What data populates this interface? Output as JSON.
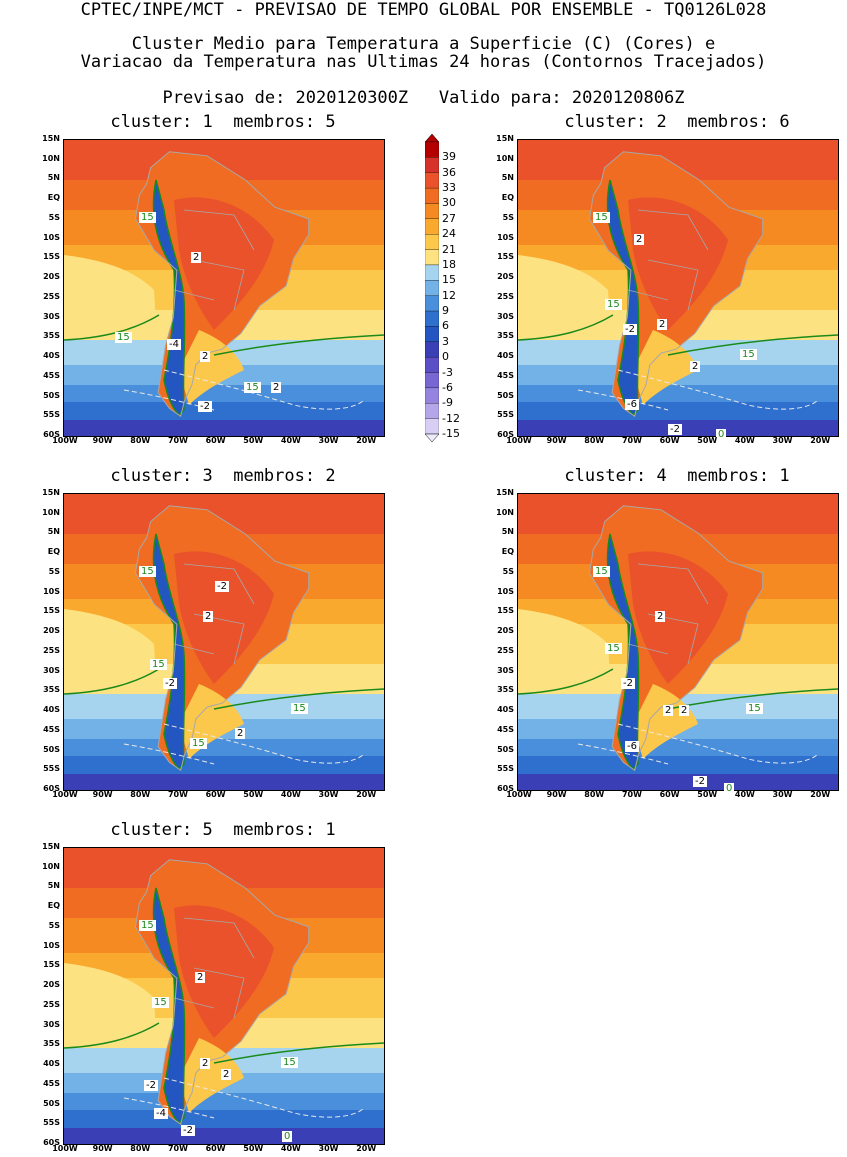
{
  "header": {
    "line1": "CPTEC/INPE/MCT - PREVISAO DE TEMPO GLOBAL POR ENSEMBLE - TQ0126L028",
    "line2": "Cluster Medio para Temperatura a Superficie (C) (Cores) e",
    "line3": "Variacao da Temperatura nas Ultimas 24 horas (Contornos Tracejados)",
    "line4": "Previsao de: 2020120300Z   Valido para: 2020120806Z"
  },
  "panels": [
    {
      "title": "cluster: 1  membros: 5",
      "labels": [
        {
          "t": "15",
          "c": "g"
        },
        {
          "t": "15",
          "c": "g"
        },
        {
          "t": "15",
          "c": "g"
        },
        {
          "t": "2",
          "c": "k"
        },
        {
          "t": "-4",
          "c": "k"
        },
        {
          "t": "2",
          "c": "k"
        },
        {
          "t": "2",
          "c": "k"
        },
        {
          "t": "-2",
          "c": "k"
        }
      ]
    },
    {
      "title": "cluster: 2  membros: 6",
      "labels": [
        {
          "t": "15",
          "c": "g"
        },
        {
          "t": "15",
          "c": "g"
        },
        {
          "t": "15",
          "c": "g"
        },
        {
          "t": "2",
          "c": "k"
        },
        {
          "t": "-2",
          "c": "k"
        },
        {
          "t": "2",
          "c": "k"
        },
        {
          "t": "2",
          "c": "k"
        },
        {
          "t": "-6",
          "c": "k"
        },
        {
          "t": "-2",
          "c": "k"
        },
        {
          "t": "0",
          "c": "g"
        }
      ]
    },
    {
      "title": "cluster: 3  membros: 2",
      "labels": [
        {
          "t": "15",
          "c": "g"
        },
        {
          "t": "15",
          "c": "g"
        },
        {
          "t": "15",
          "c": "g"
        },
        {
          "t": "15",
          "c": "g"
        },
        {
          "t": "-2",
          "c": "k"
        },
        {
          "t": "2",
          "c": "k"
        },
        {
          "t": "-2",
          "c": "k"
        },
        {
          "t": "2",
          "c": "k"
        }
      ]
    },
    {
      "title": "cluster: 4  membros: 1",
      "labels": [
        {
          "t": "15",
          "c": "g"
        },
        {
          "t": "15",
          "c": "g"
        },
        {
          "t": "15",
          "c": "g"
        },
        {
          "t": "2",
          "c": "k"
        },
        {
          "t": "-2",
          "c": "k"
        },
        {
          "t": "2",
          "c": "k"
        },
        {
          "t": "2",
          "c": "k"
        },
        {
          "t": "-6",
          "c": "k"
        },
        {
          "t": "-2",
          "c": "k"
        },
        {
          "t": "0",
          "c": "g"
        }
      ]
    },
    {
      "title": "cluster: 5  membros: 1",
      "labels": [
        {
          "t": "15",
          "c": "g"
        },
        {
          "t": "15",
          "c": "g"
        },
        {
          "t": "15",
          "c": "g"
        },
        {
          "t": "2",
          "c": "k"
        },
        {
          "t": "2",
          "c": "k"
        },
        {
          "t": "2",
          "c": "k"
        },
        {
          "t": "-2",
          "c": "k"
        },
        {
          "t": "-4",
          "c": "k"
        },
        {
          "t": "-2",
          "c": "k"
        },
        {
          "t": "0",
          "c": "g"
        }
      ]
    }
  ],
  "axes": {
    "lat_ticks": [
      "15N",
      "10N",
      "5N",
      "EQ",
      "5S",
      "10S",
      "15S",
      "20S",
      "25S",
      "30S",
      "35S",
      "40S",
      "45S",
      "50S",
      "55S",
      "60S"
    ],
    "lon_ticks": [
      "100W",
      "90W",
      "80W",
      "70W",
      "60W",
      "50W",
      "40W",
      "30W",
      "20W"
    ]
  },
  "colorbar": {
    "levels": [
      "39",
      "36",
      "33",
      "30",
      "27",
      "24",
      "21",
      "18",
      "15",
      "12",
      "9",
      "6",
      "3",
      "0",
      "-3",
      "-6",
      "-9",
      "-12",
      "-15"
    ],
    "colors": [
      "#b40000",
      "#d7312b",
      "#e9522a",
      "#f06c22",
      "#f58a22",
      "#f9a92d",
      "#fcc84c",
      "#fde282",
      "#a6d3ee",
      "#72b2e6",
      "#4a8fdb",
      "#2f6fce",
      "#2456c2",
      "#3a3fb5",
      "#5b4ec6",
      "#7867d3",
      "#9584df",
      "#b5a6ea",
      "#d7cff4"
    ]
  }
}
